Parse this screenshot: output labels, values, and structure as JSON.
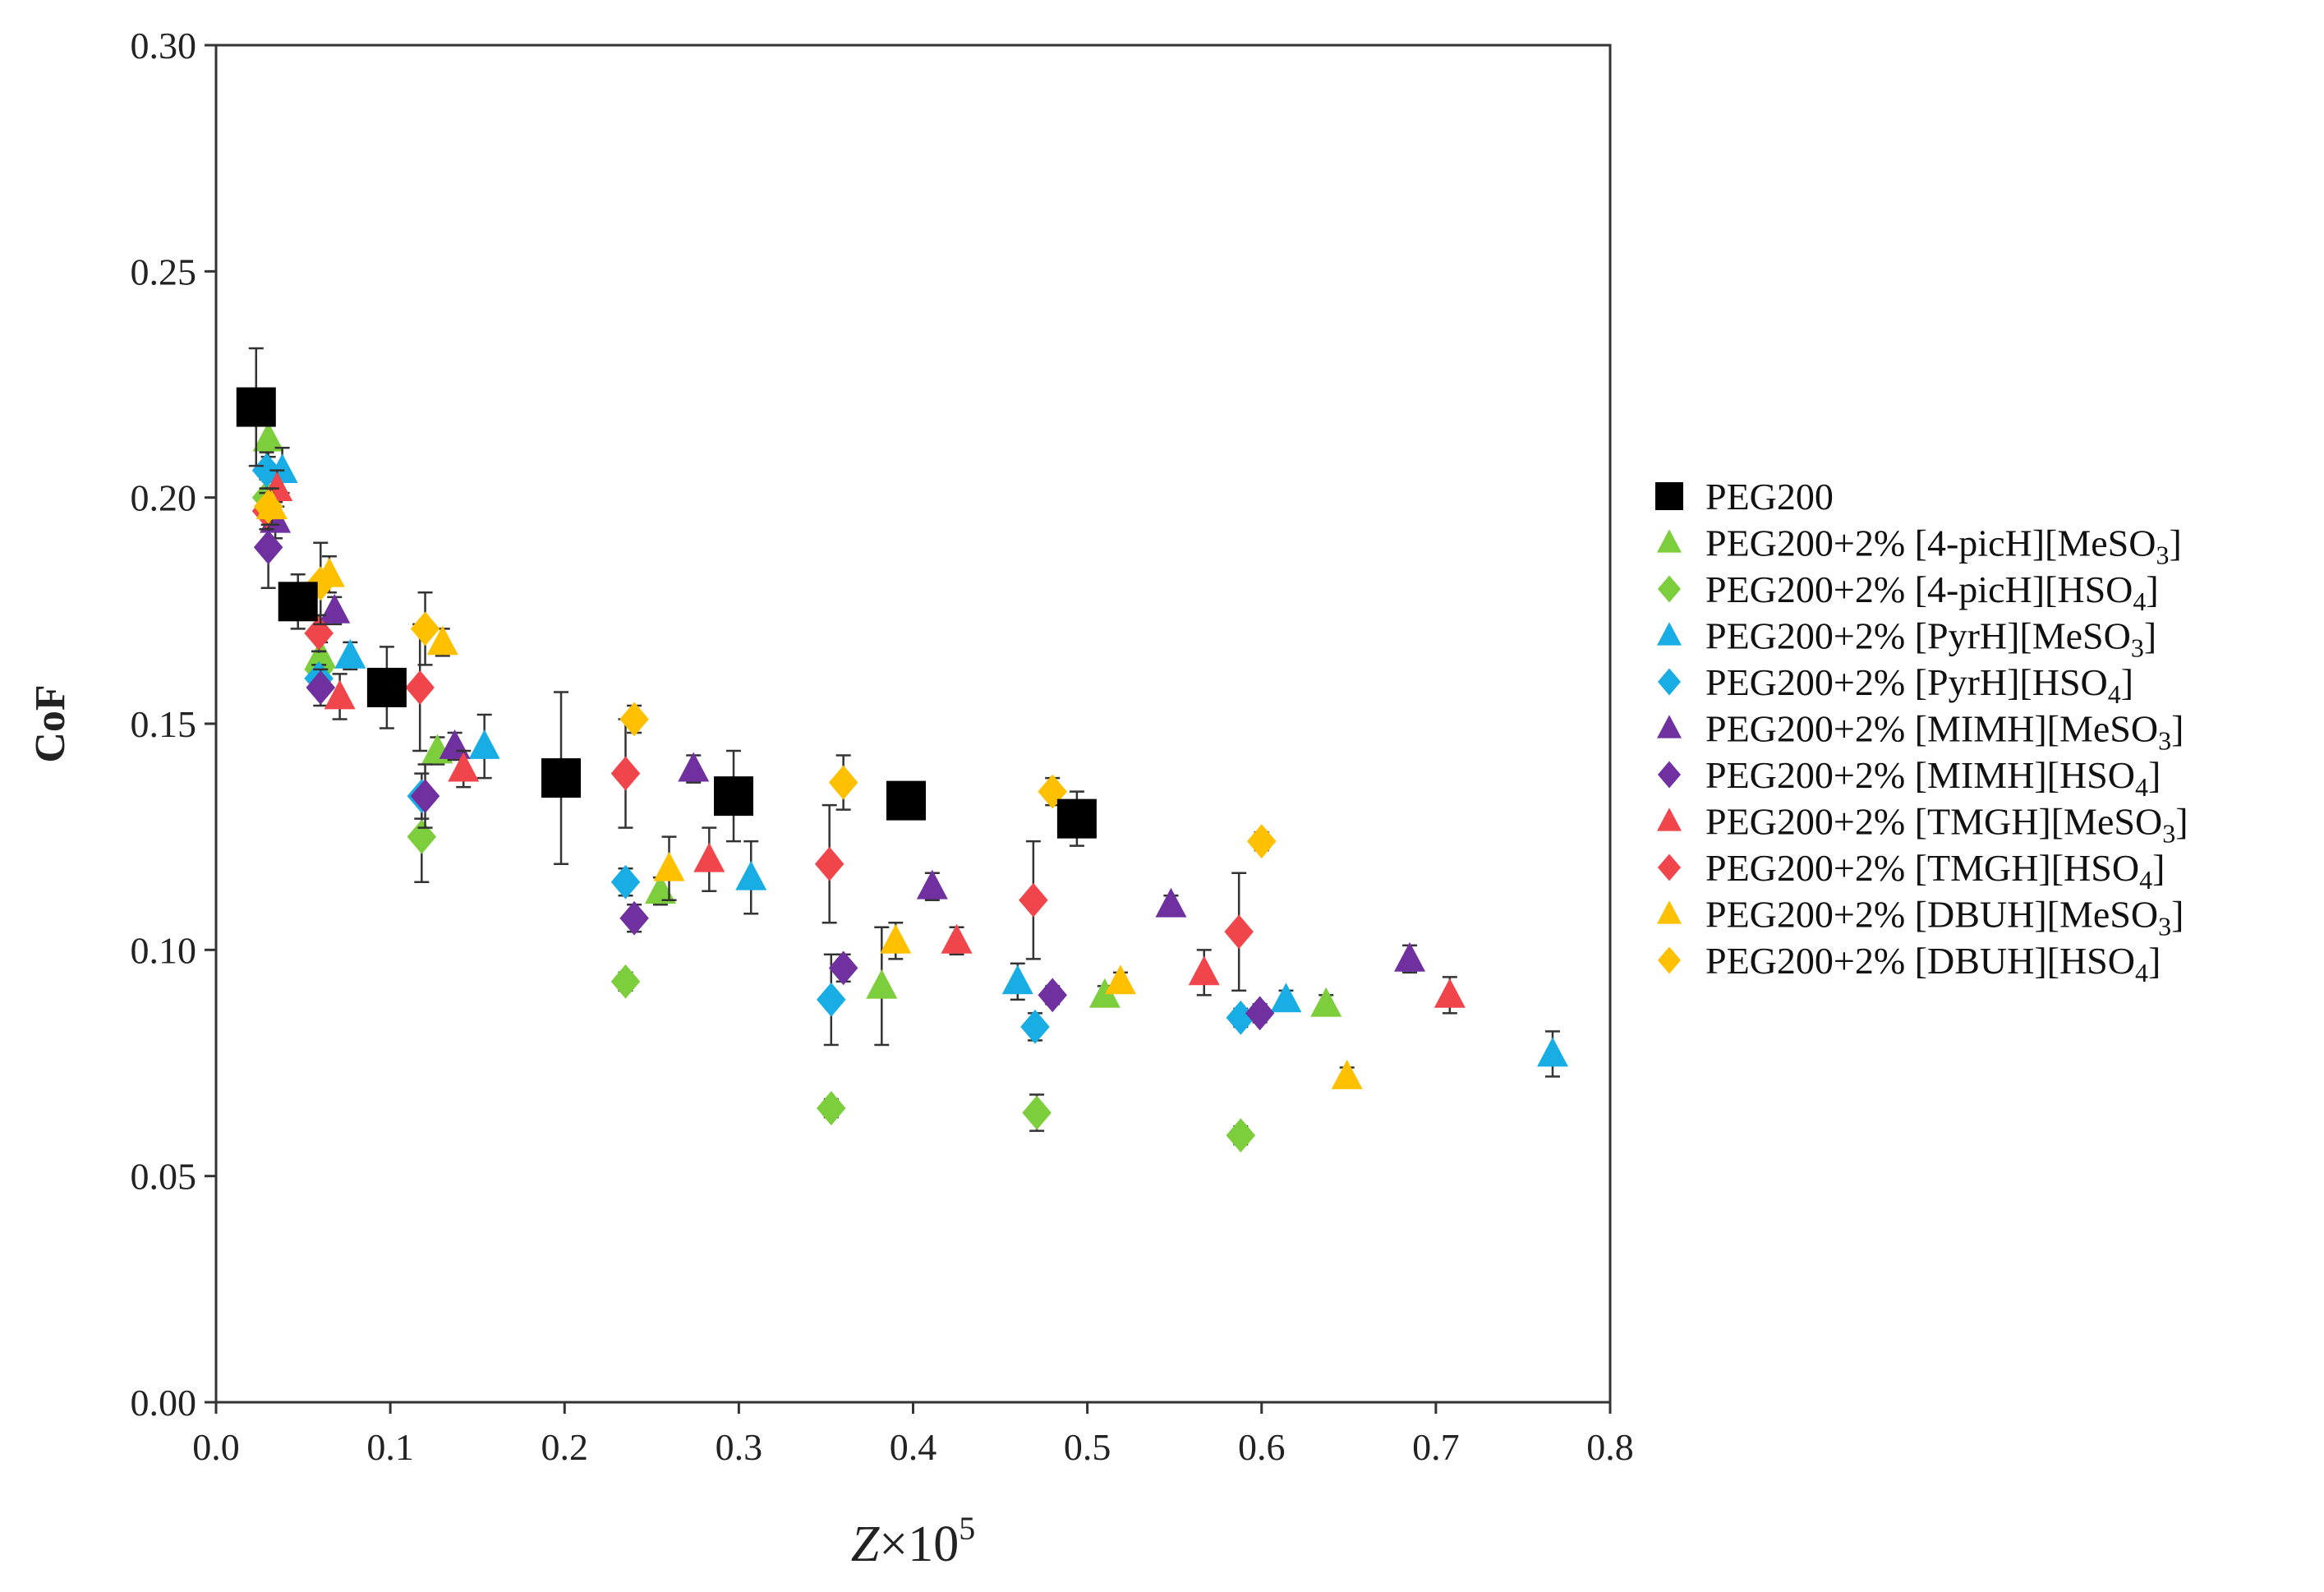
{
  "chart_data": {
    "type": "scatter",
    "title": "",
    "ylabel": "CoF",
    "xlabel": "Z×10^5",
    "xlabel_parts": {
      "var": "Z",
      "times": "×10",
      "exp": "5"
    },
    "xlim": [
      0,
      0.8
    ],
    "ylim": [
      0,
      0.3
    ],
    "x_ticks": [
      0.0,
      0.1,
      0.2,
      0.3,
      0.4,
      0.5,
      0.6,
      0.7,
      0.8
    ],
    "x_tick_labels": [
      "0.0",
      "0.1",
      "0.2",
      "0.3",
      "0.4",
      "0.5",
      "0.6",
      "0.7",
      "0.8"
    ],
    "y_ticks": [
      0.0,
      0.05,
      0.1,
      0.15,
      0.2,
      0.25,
      0.3
    ],
    "y_tick_labels": [
      "0.00",
      "0.05",
      "0.10",
      "0.15",
      "0.20",
      "0.25",
      "0.30"
    ],
    "grid": false,
    "legend_position": "right",
    "series": [
      {
        "name": "PEG200",
        "label": "PEG200",
        "sub": "",
        "tail": "",
        "marker": "square",
        "color": "#000000",
        "points": [
          {
            "x": 0.023,
            "y": 0.22,
            "err": 0.013
          },
          {
            "x": 0.047,
            "y": 0.177,
            "err": 0.006
          },
          {
            "x": 0.098,
            "y": 0.158,
            "err": 0.009
          },
          {
            "x": 0.198,
            "y": 0.138,
            "err": 0.019
          },
          {
            "x": 0.297,
            "y": 0.134,
            "err": 0.01
          },
          {
            "x": 0.396,
            "y": 0.133,
            "err": 0.004
          },
          {
            "x": 0.494,
            "y": 0.129,
            "err": 0.006
          }
        ]
      },
      {
        "name": "PEG200+2% [4-picH][MeSO3]",
        "label": "PEG200+2% [4-picH][MeSO",
        "sub": "3",
        "tail": "]",
        "marker": "triangle",
        "color": "#7dce3d",
        "points": [
          {
            "x": 0.03,
            "y": 0.213,
            "err": 0.004
          },
          {
            "x": 0.06,
            "y": 0.165,
            "err": 0.003
          },
          {
            "x": 0.127,
            "y": 0.144,
            "err": 0.003
          },
          {
            "x": 0.255,
            "y": 0.113,
            "err": 0.003
          },
          {
            "x": 0.382,
            "y": 0.092,
            "err": 0.013
          },
          {
            "x": 0.51,
            "y": 0.09,
            "err": 0.002
          },
          {
            "x": 0.637,
            "y": 0.088,
            "err": 0.002
          }
        ]
      },
      {
        "name": "PEG200+2% [4-picH][HSO4]",
        "label": "PEG200+2% [4-picH][HSO",
        "sub": "4",
        "tail": "]",
        "marker": "diamond",
        "color": "#7dce3d",
        "points": [
          {
            "x": 0.029,
            "y": 0.2,
            "err": 0.004
          },
          {
            "x": 0.059,
            "y": 0.162,
            "err": 0.004
          },
          {
            "x": 0.118,
            "y": 0.125,
            "err": 0.01
          },
          {
            "x": 0.235,
            "y": 0.093,
            "err": 0.002
          },
          {
            "x": 0.353,
            "y": 0.065,
            "err": 0.002
          },
          {
            "x": 0.471,
            "y": 0.064,
            "err": 0.004
          },
          {
            "x": 0.588,
            "y": 0.059,
            "err": 0.002
          }
        ]
      },
      {
        "name": "PEG200+2% [PyrH][MeSO3]",
        "label": "PEG200+2% [PyrH][MeSO",
        "sub": "3",
        "tail": "]",
        "marker": "triangle",
        "color": "#18aee5",
        "points": [
          {
            "x": 0.038,
            "y": 0.206,
            "err": 0.005
          },
          {
            "x": 0.077,
            "y": 0.165,
            "err": 0.003
          },
          {
            "x": 0.154,
            "y": 0.145,
            "err": 0.007
          },
          {
            "x": 0.307,
            "y": 0.116,
            "err": 0.008
          },
          {
            "x": 0.46,
            "y": 0.093,
            "err": 0.004
          },
          {
            "x": 0.614,
            "y": 0.089,
            "err": 0.002
          },
          {
            "x": 0.767,
            "y": 0.077,
            "err": 0.005
          }
        ]
      },
      {
        "name": "PEG200+2% [PyrH][HSO4]",
        "label": "PEG200+2% [PyrH][HSO",
        "sub": "4",
        "tail": "]",
        "marker": "diamond",
        "color": "#18aee5",
        "points": [
          {
            "x": 0.029,
            "y": 0.206,
            "err": 0.004
          },
          {
            "x": 0.059,
            "y": 0.16,
            "err": 0.003
          },
          {
            "x": 0.118,
            "y": 0.134,
            "err": 0.005
          },
          {
            "x": 0.235,
            "y": 0.115,
            "err": 0.003
          },
          {
            "x": 0.353,
            "y": 0.089,
            "err": 0.01
          },
          {
            "x": 0.47,
            "y": 0.083,
            "err": 0.003
          },
          {
            "x": 0.588,
            "y": 0.085,
            "err": 0.002
          }
        ]
      },
      {
        "name": "PEG200+2% [MIMH][MeSO3]",
        "label": "PEG200+2% [MIMH][MeSO",
        "sub": "3",
        "tail": "]",
        "marker": "triangle",
        "color": "#7030a0",
        "points": [
          {
            "x": 0.034,
            "y": 0.195,
            "err": 0.004
          },
          {
            "x": 0.068,
            "y": 0.175,
            "err": 0.003
          },
          {
            "x": 0.137,
            "y": 0.145,
            "err": 0.003
          },
          {
            "x": 0.274,
            "y": 0.14,
            "err": 0.003
          },
          {
            "x": 0.411,
            "y": 0.114,
            "err": 0.003
          },
          {
            "x": 0.548,
            "y": 0.11,
            "err": 0.002
          },
          {
            "x": 0.685,
            "y": 0.098,
            "err": 0.003
          }
        ]
      },
      {
        "name": "PEG200+2% [MIMH][HSO4]",
        "label": "PEG200+2% [MIMH][HSO",
        "sub": "4",
        "tail": "]",
        "marker": "diamond",
        "color": "#7030a0",
        "points": [
          {
            "x": 0.03,
            "y": 0.189,
            "err": 0.009
          },
          {
            "x": 0.06,
            "y": 0.158,
            "err": 0.004
          },
          {
            "x": 0.12,
            "y": 0.134,
            "err": 0.007
          },
          {
            "x": 0.24,
            "y": 0.107,
            "err": 0.003
          },
          {
            "x": 0.36,
            "y": 0.096,
            "err": 0.003
          },
          {
            "x": 0.48,
            "y": 0.09,
            "err": 0.002
          },
          {
            "x": 0.599,
            "y": 0.086,
            "err": 0.002
          }
        ]
      },
      {
        "name": "PEG200+2% [TMGH][MeSO3]",
        "label": "PEG200+2% [TMGH][MeSO",
        "sub": "3",
        "tail": "]",
        "marker": "triangle",
        "color": "#f0454a",
        "points": [
          {
            "x": 0.035,
            "y": 0.202,
            "err": 0.004
          },
          {
            "x": 0.071,
            "y": 0.156,
            "err": 0.005
          },
          {
            "x": 0.142,
            "y": 0.14,
            "err": 0.004
          },
          {
            "x": 0.283,
            "y": 0.12,
            "err": 0.007
          },
          {
            "x": 0.425,
            "y": 0.102,
            "err": 0.003
          },
          {
            "x": 0.567,
            "y": 0.095,
            "err": 0.005
          },
          {
            "x": 0.708,
            "y": 0.09,
            "err": 0.004
          }
        ]
      },
      {
        "name": "PEG200+2% [TMGH][HSO4]",
        "label": "PEG200+2% [TMGH][HSO",
        "sub": "4",
        "tail": "]",
        "marker": "diamond",
        "color": "#f0454a",
        "points": [
          {
            "x": 0.029,
            "y": 0.197,
            "err": 0.004
          },
          {
            "x": 0.059,
            "y": 0.17,
            "err": 0.004
          },
          {
            "x": 0.117,
            "y": 0.158,
            "err": 0.014
          },
          {
            "x": 0.235,
            "y": 0.139,
            "err": 0.012
          },
          {
            "x": 0.352,
            "y": 0.119,
            "err": 0.013
          },
          {
            "x": 0.469,
            "y": 0.111,
            "err": 0.013
          },
          {
            "x": 0.587,
            "y": 0.104,
            "err": 0.013
          }
        ]
      },
      {
        "name": "PEG200+2% [DBUH][MeSO3]",
        "label": "PEG200+2% [DBUH][MeSO",
        "sub": "3",
        "tail": "]",
        "marker": "triangle",
        "color": "#ffc000",
        "points": [
          {
            "x": 0.032,
            "y": 0.198,
            "err": 0.004
          },
          {
            "x": 0.065,
            "y": 0.183,
            "err": 0.004
          },
          {
            "x": 0.13,
            "y": 0.168,
            "err": 0.003
          },
          {
            "x": 0.26,
            "y": 0.118,
            "err": 0.007
          },
          {
            "x": 0.39,
            "y": 0.102,
            "err": 0.004
          },
          {
            "x": 0.519,
            "y": 0.093,
            "err": 0.002
          },
          {
            "x": 0.649,
            "y": 0.072,
            "err": 0.002
          }
        ]
      },
      {
        "name": "PEG200+2% [DBUH][HSO4]",
        "label": "PEG200+2% [DBUH][HSO",
        "sub": "4",
        "tail": "]",
        "marker": "diamond",
        "color": "#ffc000",
        "points": [
          {
            "x": 0.03,
            "y": 0.198,
            "err": 0.004
          },
          {
            "x": 0.06,
            "y": 0.181,
            "err": 0.009
          },
          {
            "x": 0.12,
            "y": 0.171,
            "err": 0.008
          },
          {
            "x": 0.24,
            "y": 0.151,
            "err": 0.003
          },
          {
            "x": 0.36,
            "y": 0.137,
            "err": 0.006
          },
          {
            "x": 0.48,
            "y": 0.135,
            "err": 0.003
          },
          {
            "x": 0.6,
            "y": 0.124,
            "err": 0.002
          }
        ]
      }
    ]
  }
}
